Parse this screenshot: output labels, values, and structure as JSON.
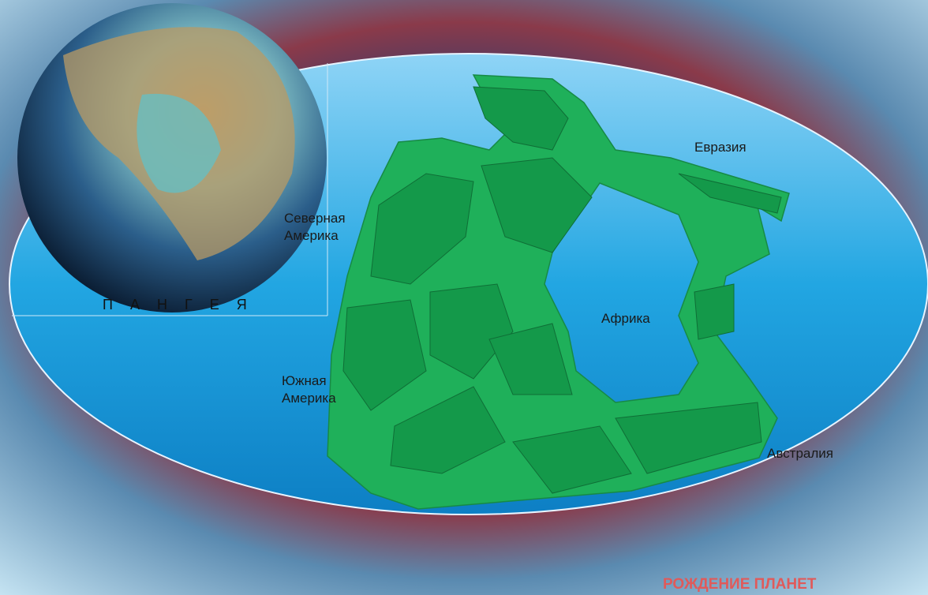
{
  "map": {
    "title": "ПАНГЕЯ",
    "labels": [
      {
        "lines": [
          "Евразия"
        ]
      },
      {
        "lines": [
          "Северная",
          "Америка"
        ]
      },
      {
        "lines": [
          "Африка"
        ]
      },
      {
        "lines": [
          "Южная",
          "Америка"
        ]
      },
      {
        "lines": [
          "Австралия"
        ]
      }
    ],
    "footer": "РОЖДЕНИЕ ПЛАНЕТ"
  }
}
